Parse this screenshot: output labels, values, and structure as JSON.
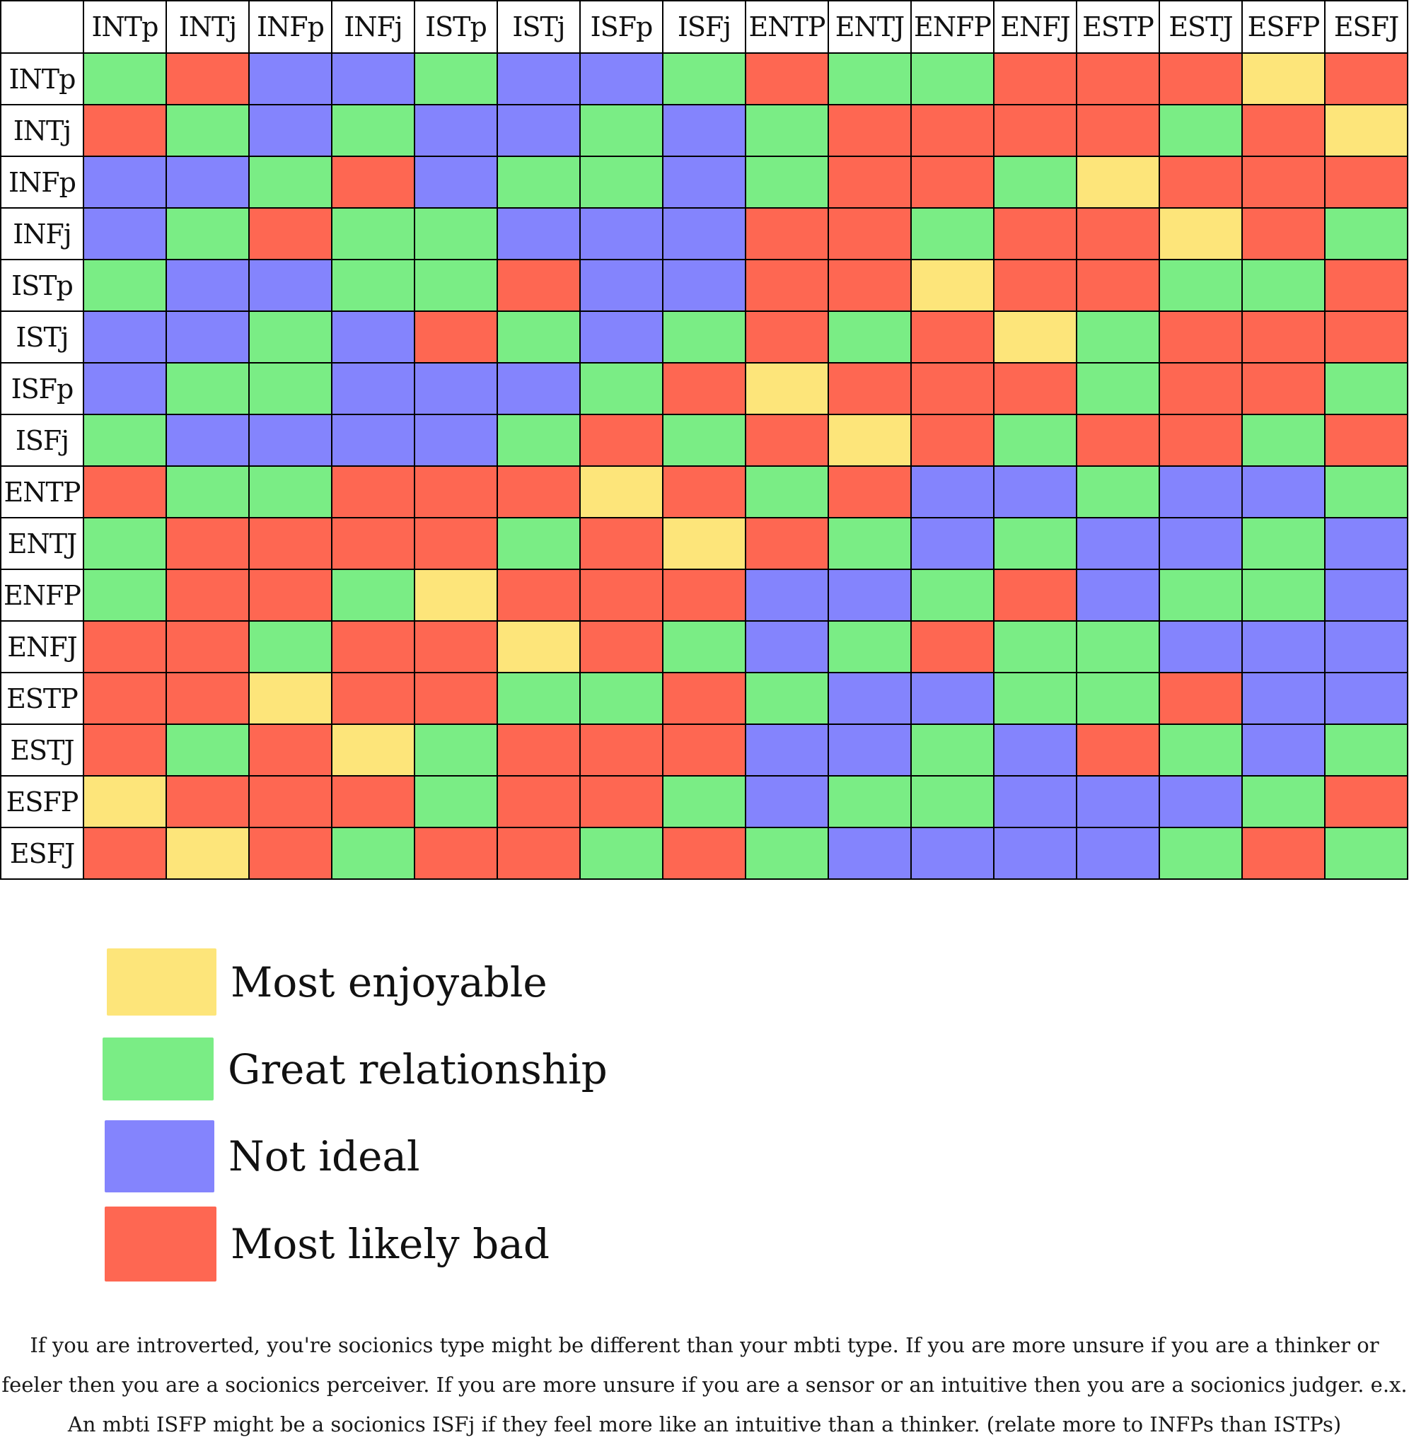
{
  "chart_data": {
    "type": "heatmap",
    "title": "",
    "columns": [
      "INTp",
      "INTj",
      "INFp",
      "INFj",
      "ISTp",
      "ISTj",
      "ISFp",
      "ISFj",
      "ENTP",
      "ENTJ",
      "ENFP",
      "ENFJ",
      "ESTP",
      "ESTJ",
      "ESFP",
      "ESFJ"
    ],
    "rows": [
      "INTp",
      "INTj",
      "INFp",
      "INFj",
      "ISTp",
      "ISTj",
      "ISFp",
      "ISFj",
      "ENTP",
      "ENTJ",
      "ENFP",
      "ENFJ",
      "ESTP",
      "ESTJ",
      "ESFP",
      "ESFJ"
    ],
    "categories": {
      "Y": "Most enjoyable",
      "G": "Great relationship",
      "B": "Not ideal",
      "R": "Most likely bad"
    },
    "category_colors": {
      "Y": "#fde57a",
      "G": "#7aed85",
      "B": "#8484fd",
      "R": "#fe6752"
    },
    "values": [
      [
        "G",
        "R",
        "B",
        "B",
        "G",
        "B",
        "B",
        "G",
        "R",
        "G",
        "G",
        "R",
        "R",
        "R",
        "Y",
        "R"
      ],
      [
        "R",
        "G",
        "B",
        "G",
        "B",
        "B",
        "G",
        "B",
        "G",
        "R",
        "R",
        "R",
        "R",
        "G",
        "R",
        "Y"
      ],
      [
        "B",
        "B",
        "G",
        "R",
        "B",
        "G",
        "G",
        "B",
        "G",
        "R",
        "R",
        "G",
        "Y",
        "R",
        "R",
        "R"
      ],
      [
        "B",
        "G",
        "R",
        "G",
        "G",
        "B",
        "B",
        "B",
        "R",
        "R",
        "G",
        "R",
        "R",
        "Y",
        "R",
        "G"
      ],
      [
        "G",
        "B",
        "B",
        "G",
        "G",
        "R",
        "B",
        "B",
        "R",
        "R",
        "Y",
        "R",
        "R",
        "G",
        "G",
        "R"
      ],
      [
        "B",
        "B",
        "G",
        "B",
        "R",
        "G",
        "B",
        "G",
        "R",
        "G",
        "R",
        "Y",
        "G",
        "R",
        "R",
        "R"
      ],
      [
        "B",
        "G",
        "G",
        "B",
        "B",
        "B",
        "G",
        "R",
        "Y",
        "R",
        "R",
        "R",
        "G",
        "R",
        "R",
        "G"
      ],
      [
        "G",
        "B",
        "B",
        "B",
        "B",
        "G",
        "R",
        "G",
        "R",
        "Y",
        "R",
        "G",
        "R",
        "R",
        "G",
        "R"
      ],
      [
        "R",
        "G",
        "G",
        "R",
        "R",
        "R",
        "Y",
        "R",
        "G",
        "R",
        "B",
        "B",
        "G",
        "B",
        "B",
        "G"
      ],
      [
        "G",
        "R",
        "R",
        "R",
        "R",
        "G",
        "R",
        "Y",
        "R",
        "G",
        "B",
        "G",
        "B",
        "B",
        "G",
        "B"
      ],
      [
        "G",
        "R",
        "R",
        "G",
        "Y",
        "R",
        "R",
        "R",
        "B",
        "B",
        "G",
        "R",
        "B",
        "G",
        "G",
        "B"
      ],
      [
        "R",
        "R",
        "G",
        "R",
        "R",
        "Y",
        "R",
        "G",
        "B",
        "G",
        "R",
        "G",
        "G",
        "B",
        "B",
        "B"
      ],
      [
        "R",
        "R",
        "Y",
        "R",
        "R",
        "G",
        "G",
        "R",
        "G",
        "B",
        "B",
        "G",
        "G",
        "R",
        "B",
        "B"
      ],
      [
        "R",
        "G",
        "R",
        "Y",
        "G",
        "R",
        "R",
        "R",
        "B",
        "B",
        "G",
        "B",
        "R",
        "G",
        "B",
        "G"
      ],
      [
        "Y",
        "R",
        "R",
        "R",
        "G",
        "R",
        "R",
        "G",
        "B",
        "G",
        "G",
        "B",
        "B",
        "B",
        "G",
        "R"
      ],
      [
        "R",
        "Y",
        "R",
        "G",
        "R",
        "R",
        "G",
        "R",
        "G",
        "B",
        "B",
        "B",
        "B",
        "G",
        "R",
        "G"
      ]
    ],
    "legend": [
      {
        "key": "Y",
        "label": "Most enjoyable"
      },
      {
        "key": "G",
        "label": "Great relationship"
      },
      {
        "key": "B",
        "label": "Not ideal"
      },
      {
        "key": "R",
        "label": "Most likely bad"
      }
    ]
  },
  "footnote": "If you are introverted, you're socionics type might be different than your mbti type. If you are more unsure if you are a thinker or feeler then you are a socionics perceiver. If you are more unsure if you are a sensor or an intuitive then you are a socionics judger. e.x. An mbti ISFP might be a socionics ISFj if they feel more like an intuitive than a thinker. (relate more to INFPs than ISTPs)"
}
